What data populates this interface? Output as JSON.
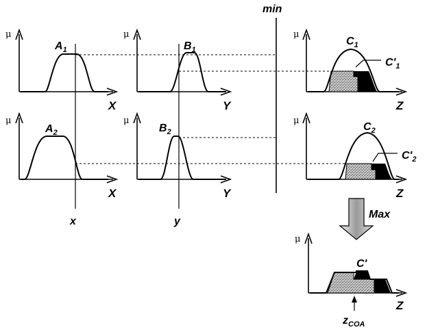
{
  "labels": {
    "min": "min",
    "max": "Max",
    "mu": "μ",
    "A1": "A",
    "A1_sub": "1",
    "A2": "A",
    "A2_sub": "2",
    "B1": "B",
    "B1_sub": "1",
    "B2": "B",
    "B2_sub": "2",
    "C1": "C",
    "C1_sub": "1",
    "C2": "C",
    "C2_sub": "2",
    "C1p": "C'",
    "C1p_sub": "1",
    "C2p": "C'",
    "C2p_sub": "2",
    "Cp": "C'",
    "X": "X",
    "Y": "Y",
    "Z": "Z",
    "x": "x",
    "y": "y",
    "zcoa": "z",
    "zcoa_sub": "COA"
  },
  "colors": {
    "ink": "#000000",
    "shade": "#b4b4b4",
    "arrow_fill": "#c8c8c8"
  }
}
